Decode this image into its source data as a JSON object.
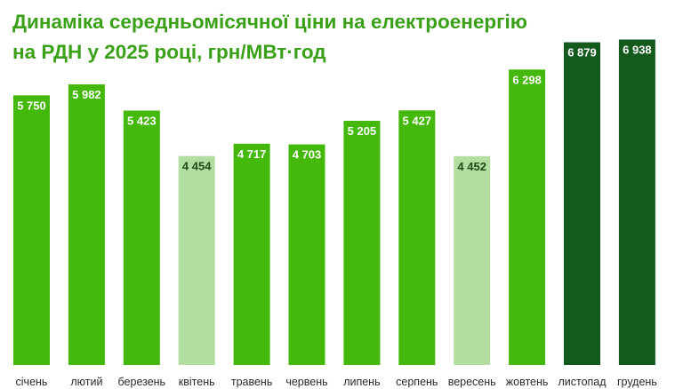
{
  "title": {
    "line1": "Динаміка середньомісячної ціни на електроенергію",
    "line2": "на РДН у 2025 році, грн/МВт·год"
  },
  "colors": {
    "title": "#3aa018",
    "normal": "#44b80b",
    "low": "#b3dea2",
    "high": "#145a1c",
    "label_on_dark": "#ffffff",
    "label_on_light": "#1f4d14"
  },
  "chart_data": {
    "type": "bar",
    "title": "Динаміка середньомісячної ціни на електроенергію на РДН у 2025 році, грн/МВт·год",
    "xlabel": "",
    "ylabel": "",
    "ylim": [
      0,
      7200
    ],
    "grid": false,
    "categories": [
      "січень",
      "лютий",
      "березень",
      "квітень",
      "травень",
      "червень",
      "липень",
      "серпень",
      "вересень",
      "жовтень",
      "листопад",
      "грудень"
    ],
    "values": [
      5750,
      5982,
      5423,
      4454,
      4717,
      4703,
      5205,
      5427,
      4452,
      6298,
      6879,
      6938
    ],
    "value_labels": [
      "5 750",
      "5 982",
      "5 423",
      "4 454",
      "4 717",
      "4 703",
      "5 205",
      "5 427",
      "4 452",
      "6 298",
      "6 879",
      "6 938"
    ],
    "bar_style": [
      "normal",
      "normal",
      "normal",
      "low",
      "normal",
      "normal",
      "normal",
      "normal",
      "low",
      "normal",
      "high",
      "high"
    ]
  }
}
